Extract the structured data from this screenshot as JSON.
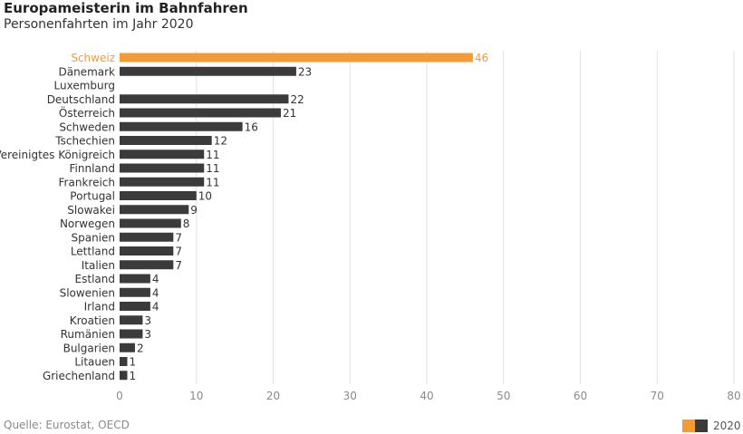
{
  "title": "Europameisterin im Bahnfahren",
  "subtitle": "Personenfahrten im Jahr 2020",
  "source": "Quelle: Eurostat, OECD",
  "legend": {
    "label": "2020"
  },
  "colors": {
    "highlight": "#f39a39",
    "default": "#3b3b3b",
    "grid": "#e2e2e2",
    "text": "#333333",
    "tick": "#8a8a8a"
  },
  "chart_data": {
    "type": "bar",
    "orientation": "horizontal",
    "categories": [
      "Schweiz",
      "Dänemark",
      "Luxemburg",
      "Deutschland",
      "Österreich",
      "Schweden",
      "Tschechien",
      "Vereinigtes Königreich",
      "Finnland",
      "Frankreich",
      "Portugal",
      "Slowakei",
      "Norwegen",
      "Spanien",
      "Lettland",
      "Italien",
      "Estland",
      "Slowenien",
      "Irland",
      "Kroatien",
      "Rumänien",
      "Bulgarien",
      "Litauen",
      "Griechenland"
    ],
    "series": [
      {
        "name": "2020",
        "values": [
          46,
          23,
          null,
          22,
          21,
          16,
          12,
          11,
          11,
          11,
          10,
          9,
          8,
          7,
          7,
          7,
          4,
          4,
          4,
          3,
          3,
          2,
          1,
          1
        ]
      }
    ],
    "highlight_category": "Schweiz",
    "xlim": [
      0,
      80
    ],
    "xticks": [
      0,
      10,
      20,
      30,
      40,
      50,
      60,
      70,
      80
    ],
    "grid": true
  }
}
